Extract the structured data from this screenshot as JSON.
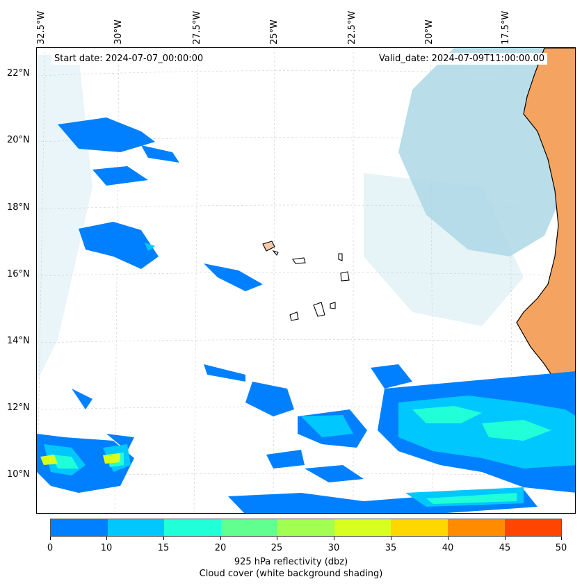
{
  "map": {
    "start_label": "Start date: 2024-07-07_00:00:00",
    "valid_label": "Valid_date: 2024-07-09T11:00:00.00",
    "lon_labels": [
      "32.5°W",
      "30°W",
      "27.5°W",
      "25°W",
      "22.5°W",
      "20°W",
      "17.5°W"
    ],
    "lat_labels": [
      "22°N",
      "20°N",
      "18°N",
      "16°N",
      "14°N",
      "12°N",
      "10°N"
    ],
    "land_color": "#f4a460",
    "cloud_color": "#add8e6"
  },
  "colorbar": {
    "ticks": [
      "0",
      "10",
      "15",
      "20",
      "25",
      "30",
      "35",
      "40",
      "45",
      "50"
    ],
    "colors": [
      "#0080ff",
      "#00c8ff",
      "#20ffd8",
      "#60ff90",
      "#a0ff50",
      "#d8ff20",
      "#ffd700",
      "#ff8c00",
      "#ff4500"
    ],
    "label": "925 hPa reflectivity (dbz)",
    "sublabel": "Cloud cover (white background shading)"
  }
}
